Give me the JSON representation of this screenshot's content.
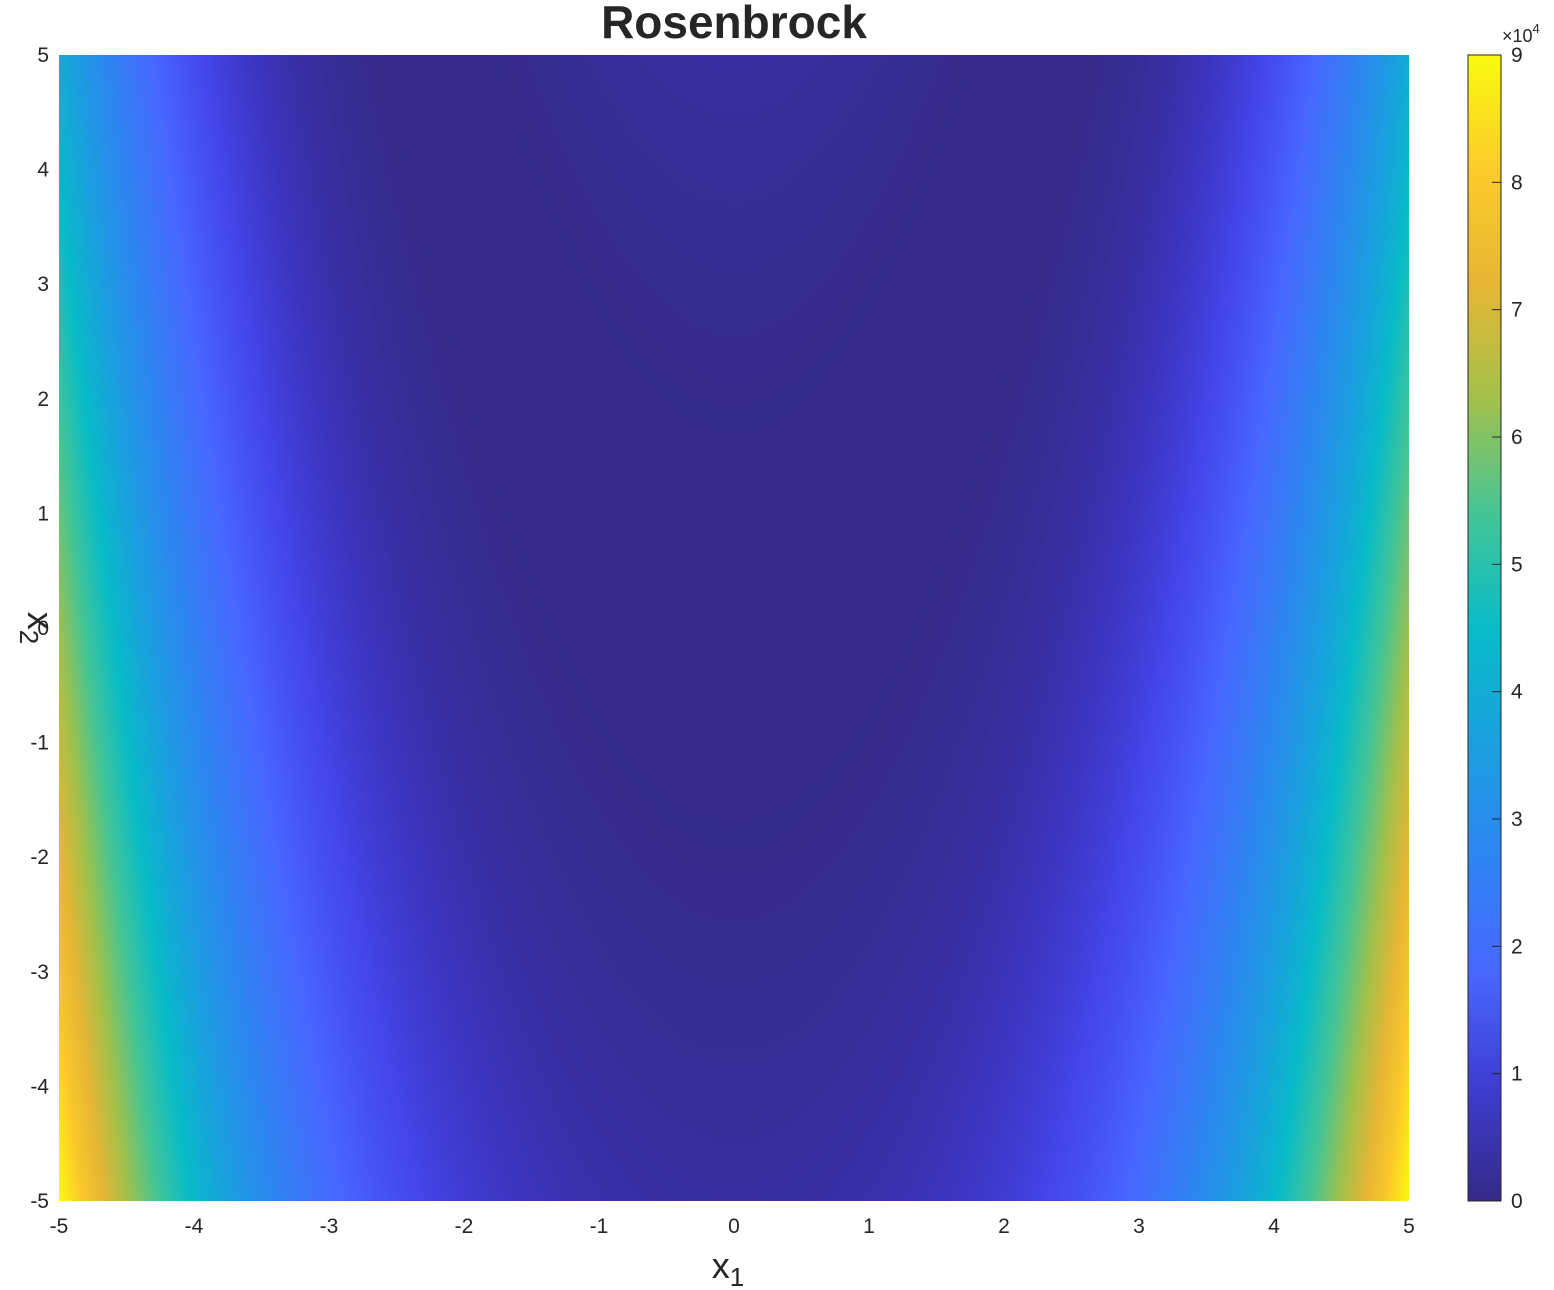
{
  "chart_data": {
    "type": "heatmap",
    "title": "Rosenbrock",
    "xlabel": {
      "base": "x",
      "sub": "1"
    },
    "ylabel": {
      "base": "x",
      "sub": "2"
    },
    "xlim": [
      -5,
      5
    ],
    "ylim": [
      -5,
      5
    ],
    "xticks": [
      "-5",
      "-4",
      "-3",
      "-2",
      "-1",
      "0",
      "1",
      "2",
      "3",
      "4",
      "5"
    ],
    "yticks": [
      "5",
      "4",
      "3",
      "2",
      "1",
      "0",
      "-1",
      "-2",
      "-3",
      "-4",
      "-5"
    ],
    "function": "f(x1, x2) = 100*(x2 - x1^2)^2 + (1 - x1)^2",
    "colormap": "parula",
    "colorbar": {
      "clim": [
        0,
        90000
      ],
      "ticks": [
        "0",
        "1",
        "2",
        "3",
        "4",
        "5",
        "6",
        "7",
        "8",
        "9"
      ],
      "exponent_base": "×10",
      "exponent_power": "4"
    },
    "grid": false
  }
}
